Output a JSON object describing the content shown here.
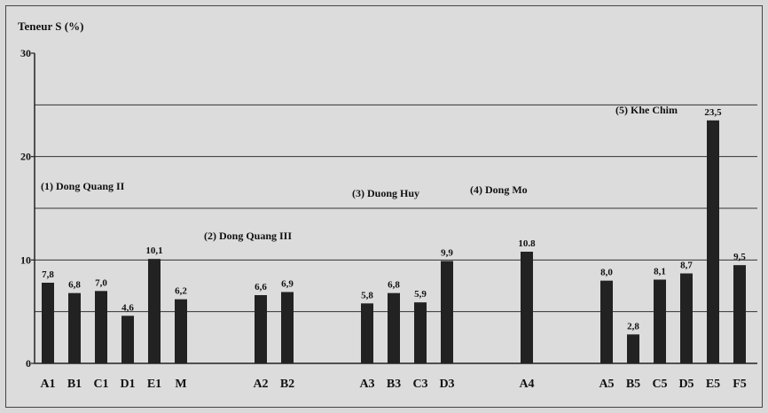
{
  "chart_data": {
    "type": "bar",
    "ylabel": "Teneur S (%)",
    "ylim": [
      0,
      30
    ],
    "yticks": [
      {
        "value": 0,
        "label": "0"
      },
      {
        "value": 10,
        "label": "10"
      },
      {
        "value": 20,
        "label": "20"
      },
      {
        "value": 30,
        "label": "30"
      }
    ],
    "gridlines": [
      5,
      10,
      15,
      20,
      25
    ],
    "bar_color": "#222222",
    "groups": [
      {
        "name": "(1) Dong Quang II",
        "bars": [
          {
            "category": "A1",
            "value": 7.8,
            "label": "7,8"
          },
          {
            "category": "B1",
            "value": 6.8,
            "label": "6,8"
          },
          {
            "category": "C1",
            "value": 7.0,
            "label": "7,0"
          },
          {
            "category": "D1",
            "value": 4.6,
            "label": "4,6"
          },
          {
            "category": "E1",
            "value": 10.1,
            "label": "10,1"
          },
          {
            "category": "M",
            "value": 6.2,
            "label": "6,2"
          }
        ]
      },
      {
        "name": "(2) Dong Quang III",
        "bars": [
          {
            "category": "A2",
            "value": 6.6,
            "label": "6,6"
          },
          {
            "category": "B2",
            "value": 6.9,
            "label": "6,9"
          }
        ]
      },
      {
        "name": "(3) Duong Huy",
        "bars": [
          {
            "category": "A3",
            "value": 5.8,
            "label": "5,8"
          },
          {
            "category": "B3",
            "value": 6.8,
            "label": "6,8"
          },
          {
            "category": "C3",
            "value": 5.9,
            "label": "5,9"
          },
          {
            "category": "D3",
            "value": 9.9,
            "label": "9,9"
          }
        ]
      },
      {
        "name": "(4) Dong Mo",
        "bars": [
          {
            "category": "A4",
            "value": 10.8,
            "label": "10.8"
          }
        ]
      },
      {
        "name": "(5) Khe Chim",
        "bars": [
          {
            "category": "A5",
            "value": 8.0,
            "label": "8,0"
          },
          {
            "category": "B5",
            "value": 2.8,
            "label": "2,8"
          },
          {
            "category": "C5",
            "value": 8.1,
            "label": "8,1"
          },
          {
            "category": "D5",
            "value": 8.7,
            "label": "8,7"
          },
          {
            "category": "E5",
            "value": 23.5,
            "label": "23,5"
          },
          {
            "category": "F5",
            "value": 9.5,
            "label": "9,5"
          }
        ]
      }
    ]
  }
}
